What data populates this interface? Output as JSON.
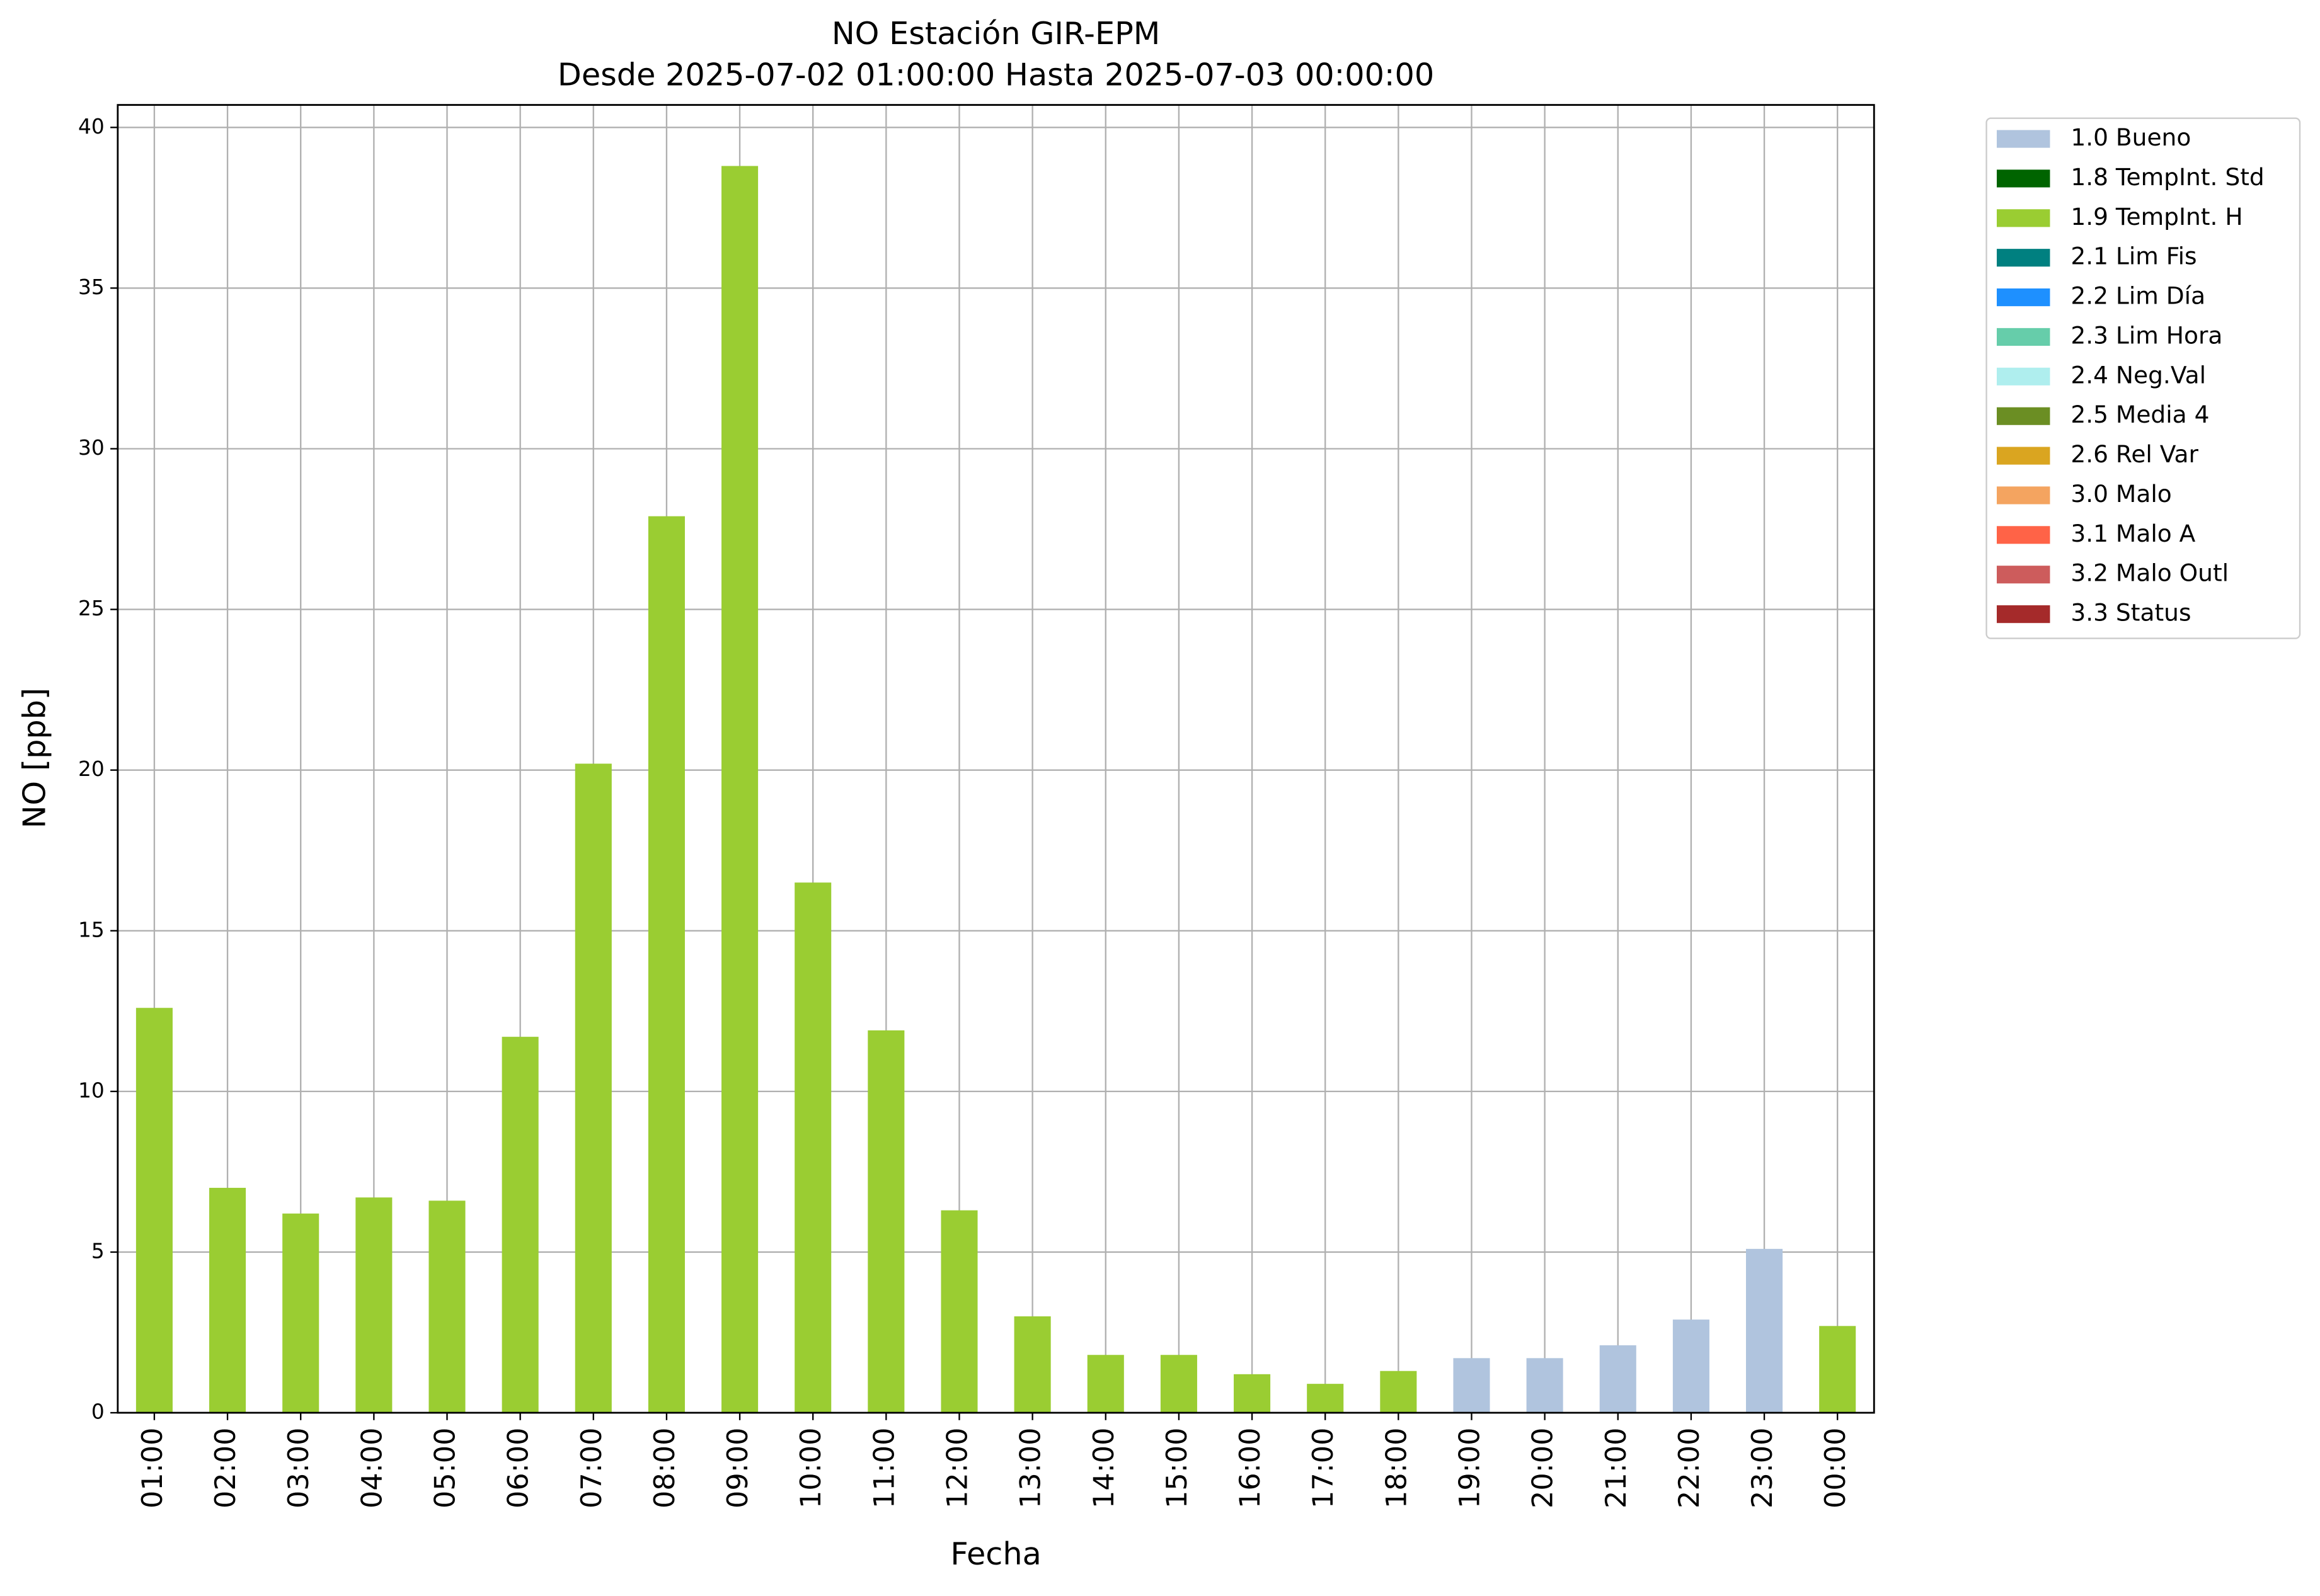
{
  "chart_data": {
    "type": "stacked_bar",
    "title": "NO Estación GIR-EPM",
    "subtitle": "Desde 2025-07-02 01:00:00 Hasta 2025-07-03 00:00:00",
    "x_label": "Fecha",
    "y_label": "NO [ppb]",
    "categories": [
      "01:00",
      "02:00",
      "03:00",
      "04:00",
      "05:00",
      "06:00",
      "07:00",
      "08:00",
      "09:00",
      "10:00",
      "11:00",
      "12:00",
      "13:00",
      "14:00",
      "15:00",
      "16:00",
      "17:00",
      "18:00",
      "19:00",
      "20:00",
      "21:00",
      "22:00",
      "23:00",
      "00:00"
    ],
    "series": [
      {
        "name": "1.0 Bueno",
        "color": "#b0c4de",
        "values": [
          null,
          null,
          null,
          null,
          null,
          null,
          null,
          null,
          null,
          null,
          null,
          null,
          null,
          null,
          null,
          null,
          null,
          null,
          1.7,
          1.7,
          2.1,
          2.9,
          5.1,
          null
        ]
      },
      {
        "name": "1.8 TempInt. Std",
        "color": "#006400",
        "values": [
          null,
          null,
          null,
          null,
          null,
          null,
          null,
          null,
          null,
          null,
          null,
          null,
          null,
          null,
          null,
          null,
          null,
          null,
          null,
          null,
          null,
          null,
          null,
          null
        ]
      },
      {
        "name": "1.9 TempInt. H",
        "color": "#9acd32",
        "values": [
          12.6,
          7,
          6.2,
          6.7,
          6.6,
          11.7,
          20.2,
          27.9,
          38.8,
          16.5,
          11.9,
          6.3,
          3,
          1.8,
          1.8,
          1.2,
          0.9,
          1.3,
          null,
          null,
          null,
          null,
          null,
          2.7
        ]
      },
      {
        "name": "2.1 Lim Fis",
        "color": "#008080",
        "values": [
          null,
          null,
          null,
          null,
          null,
          null,
          null,
          null,
          null,
          null,
          null,
          null,
          null,
          null,
          null,
          null,
          null,
          null,
          null,
          null,
          null,
          null,
          null,
          null
        ]
      },
      {
        "name": "2.2 Lim Día",
        "color": "#1e90ff",
        "values": [
          null,
          null,
          null,
          null,
          null,
          null,
          null,
          null,
          null,
          null,
          null,
          null,
          null,
          null,
          null,
          null,
          null,
          null,
          null,
          null,
          null,
          null,
          null,
          null
        ]
      },
      {
        "name": "2.3 Lim Hora",
        "color": "#66cdaa",
        "values": [
          null,
          null,
          null,
          null,
          null,
          null,
          null,
          null,
          null,
          null,
          null,
          null,
          null,
          null,
          null,
          null,
          null,
          null,
          null,
          null,
          null,
          null,
          null,
          null
        ]
      },
      {
        "name": "2.4 Neg.Val",
        "color": "#afeeee",
        "values": [
          null,
          null,
          null,
          null,
          null,
          null,
          null,
          null,
          null,
          null,
          null,
          null,
          null,
          null,
          null,
          null,
          null,
          null,
          null,
          null,
          null,
          null,
          null,
          null
        ]
      },
      {
        "name": "2.5 Media 4",
        "color": "#6b8e23",
        "values": [
          null,
          null,
          null,
          null,
          null,
          null,
          null,
          null,
          null,
          null,
          null,
          null,
          null,
          null,
          null,
          null,
          null,
          null,
          null,
          null,
          null,
          null,
          null,
          null
        ]
      },
      {
        "name": "2.6 Rel Var",
        "color": "#daa520",
        "values": [
          null,
          null,
          null,
          null,
          null,
          null,
          null,
          null,
          null,
          null,
          null,
          null,
          null,
          null,
          null,
          null,
          null,
          null,
          null,
          null,
          null,
          null,
          null,
          null
        ]
      },
      {
        "name": "3.0 Malo",
        "color": "#f4a460",
        "values": [
          null,
          null,
          null,
          null,
          null,
          null,
          null,
          null,
          null,
          null,
          null,
          null,
          null,
          null,
          null,
          null,
          null,
          null,
          null,
          null,
          null,
          null,
          null,
          null
        ]
      },
      {
        "name": "3.1 Malo A",
        "color": "#ff6347",
        "values": [
          null,
          null,
          null,
          null,
          null,
          null,
          null,
          null,
          null,
          null,
          null,
          null,
          null,
          null,
          null,
          null,
          null,
          null,
          null,
          null,
          null,
          null,
          null,
          null
        ]
      },
      {
        "name": "3.2 Malo Outl",
        "color": "#cd5c5c",
        "values": [
          null,
          null,
          null,
          null,
          null,
          null,
          null,
          null,
          null,
          null,
          null,
          null,
          null,
          null,
          null,
          null,
          null,
          null,
          null,
          null,
          null,
          null,
          null,
          null
        ]
      },
      {
        "name": "3.3 Status",
        "color": "#a52a2a",
        "values": [
          null,
          null,
          null,
          null,
          null,
          null,
          null,
          null,
          null,
          null,
          null,
          null,
          null,
          null,
          null,
          null,
          null,
          null,
          null,
          null,
          null,
          null,
          null,
          null
        ]
      }
    ],
    "ylim": [
      0,
      40.7
    ],
    "yticks": [
      0,
      5,
      10,
      15,
      20,
      25,
      30,
      35,
      40
    ],
    "grid": true,
    "legend": "outside-upper-right"
  }
}
